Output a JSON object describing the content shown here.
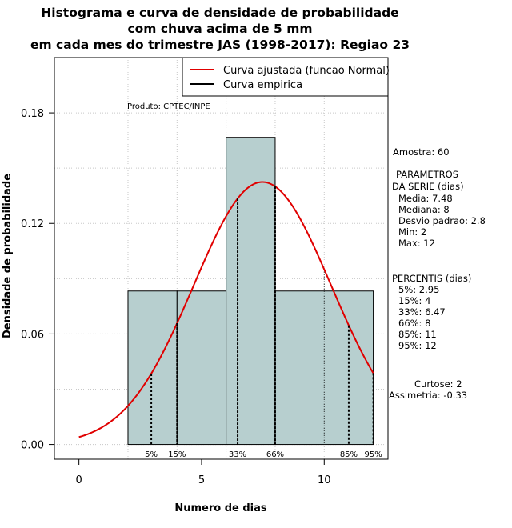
{
  "chart_data": {
    "type": "bar",
    "title_lines": [
      "Histograma e curva de densidade de probabilidade",
      "com chuva acima de 5 mm",
      "em cada mes do trimestre JAS (1998-2017): Regiao 23"
    ],
    "xlabel": "Numero de dias",
    "ylabel": "Densidade de probabilidade",
    "xlim": [
      -1,
      12.6
    ],
    "ylim": [
      -0.008,
      0.21
    ],
    "x_ticks": [
      0,
      5,
      10
    ],
    "x_tick_labels": [
      "0",
      "5",
      "10"
    ],
    "y_ticks": [
      0.0,
      0.06,
      0.12,
      0.18
    ],
    "y_tick_labels": [
      "0.00",
      "0.06",
      "0.12",
      "0.18"
    ],
    "grid": true,
    "bins": [
      {
        "x0": 2,
        "x1": 4,
        "density": 0.0833
      },
      {
        "x0": 4,
        "x1": 6,
        "density": 0.0833
      },
      {
        "x0": 6,
        "x1": 8,
        "density": 0.1667
      },
      {
        "x0": 8,
        "x1": 12,
        "density": 0.0833
      }
    ],
    "bar_color": "#b7cfcf",
    "normal_fit": {
      "name": "Curva ajustada (funcao Normal)",
      "mean": 7.48,
      "sd": 2.8,
      "color": "#e00000"
    },
    "empirical": {
      "name": "Curva empirica",
      "color": "#000000"
    },
    "percentile_markers": [
      {
        "label": "5%",
        "x": 2.95
      },
      {
        "label": "15%",
        "x": 4
      },
      {
        "label": "33%",
        "x": 6.47
      },
      {
        "label": "66%",
        "x": 8
      },
      {
        "label": "85%",
        "x": 11
      },
      {
        "label": "95%",
        "x": 12
      }
    ],
    "legend": {
      "position": "top-right",
      "entries": [
        "Curva ajustada (funcao Normal)",
        "Curva empirica"
      ]
    },
    "annotations": {
      "produto": "Produto: CPTEC/INPE",
      "amostra": "Amostra: 60",
      "parametros_title_1": "PARAMETROS",
      "parametros_title_2": "DA SERIE (dias)",
      "media": "Media: 7.48",
      "mediana": "Mediana: 8",
      "desvio": "Desvio padrao: 2.8",
      "min": "Min: 2",
      "max": "Max: 12",
      "percentis_title": "PERCENTIS (dias)",
      "p5": "5%: 2.95",
      "p15": "15%: 4",
      "p33": "33%: 6.47",
      "p66": "66%: 8",
      "p85": "85%: 11",
      "p95": "95%: 12",
      "curtose": "Curtose: 2",
      "assimetria": "Assimetria: -0.33"
    }
  }
}
